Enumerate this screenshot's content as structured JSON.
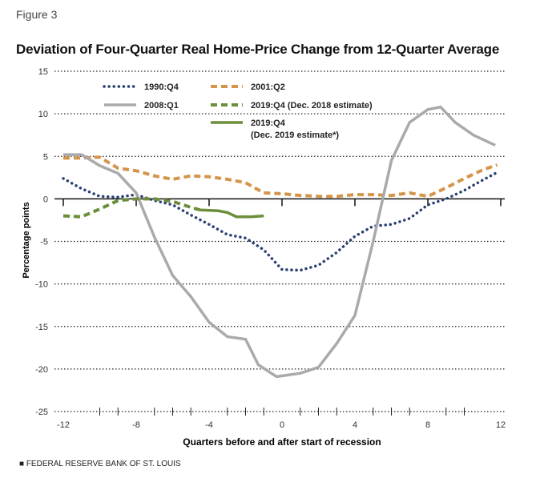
{
  "figure_label": "Figure 3",
  "source": "■ FEDERAL RESERVE BANK OF ST. LOUIS",
  "chart_data": {
    "type": "line",
    "title": "Deviation of Four-Quarter Real Home-Price Change from 12-Quarter Average",
    "xlabel": "Quarters before and after start of recession",
    "ylabel": "Percentage points",
    "xlim": [
      -12,
      12
    ],
    "ylim": [
      -25,
      15
    ],
    "xticks": [
      "-12",
      "-8",
      "-4",
      "0",
      "4",
      "8",
      "12"
    ],
    "yticks": [
      "15",
      "10",
      "5",
      "0",
      "-5",
      "-10",
      "-15",
      "-20",
      "-25"
    ],
    "grid": true,
    "legend": "top-left",
    "series": [
      {
        "name": "1990:Q4",
        "color": "#2b3f73",
        "style": "dotted",
        "x": [
          -12,
          -11,
          -10,
          -9,
          -8,
          -7,
          -6,
          -5,
          -4,
          -3,
          -2,
          -1,
          0,
          1,
          2,
          3,
          4,
          5,
          6,
          7,
          8,
          9,
          10,
          11,
          11.8
        ],
        "y": [
          2.4,
          1.2,
          0.3,
          0.2,
          0.5,
          -0.2,
          -0.7,
          -1.9,
          -3,
          -4.2,
          -4.6,
          -6,
          -8.3,
          -8.4,
          -7.8,
          -6.3,
          -4.4,
          -3.2,
          -3,
          -2.3,
          -0.7,
          0,
          1,
          2.2,
          3.1
        ]
      },
      {
        "name": "2001:Q2",
        "color": "#d4954a",
        "style": "dashed",
        "x": [
          -12,
          -11,
          -10,
          -9,
          -8,
          -7,
          -6,
          -5,
          -4,
          -3,
          -2,
          -1,
          0,
          1,
          2,
          3,
          4,
          5,
          6,
          7,
          8,
          9,
          10,
          11,
          11.8
        ],
        "y": [
          4.8,
          4.8,
          4.9,
          3.6,
          3.3,
          2.7,
          2.3,
          2.7,
          2.6,
          2.3,
          1.9,
          0.7,
          0.6,
          0.4,
          0.3,
          0.3,
          0.5,
          0.5,
          0.4,
          0.7,
          0.3,
          1.3,
          2.4,
          3.4,
          4.0
        ]
      },
      {
        "name": "2008:Q1",
        "color": "#aaaaaa",
        "style": "solid",
        "x": [
          -12,
          -11,
          -10,
          -9,
          -8,
          -7,
          -6,
          -5,
          -4,
          -3,
          -2,
          -1.3,
          -0.3,
          1,
          2,
          3,
          4,
          5,
          6,
          7,
          8,
          8.7,
          9.5,
          10.5,
          11.7
        ],
        "y": [
          5.2,
          5.2,
          3.9,
          3.0,
          0.7,
          -4.5,
          -9,
          -11.5,
          -14.5,
          -16.2,
          -16.5,
          -19.5,
          -20.9,
          -20.5,
          -19.8,
          -17,
          -13.7,
          -5,
          4.5,
          9,
          10.5,
          10.8,
          9,
          7.5,
          6.3
        ]
      },
      {
        "name": "2019:Q4 (Dec. 2018 estimate)",
        "color": "#6b8e3a",
        "style": "dashed",
        "x": [
          -12,
          -11,
          -10,
          -9,
          -8,
          -7,
          -6,
          -5,
          -4.5
        ],
        "y": [
          -2,
          -2.1,
          -1.2,
          -0.2,
          0,
          0,
          -0.3,
          -1.0,
          -1.3
        ]
      },
      {
        "name": "2019:Q4 (Dec. 2019 estimate*)",
        "color": "#6b8e3a",
        "style": "solid",
        "x": [
          -4.5,
          -3.5,
          -3,
          -2.5,
          -1.7,
          -1
        ],
        "y": [
          -1.3,
          -1.4,
          -1.6,
          -2.1,
          -2.1,
          -2.0
        ]
      }
    ],
    "legend_labels": [
      "1990:Q4",
      "2001:Q2",
      "2008:Q1",
      "2019:Q4 (Dec. 2018 estimate)",
      "2019:Q4",
      "(Dec. 2019 estimate*)"
    ]
  }
}
